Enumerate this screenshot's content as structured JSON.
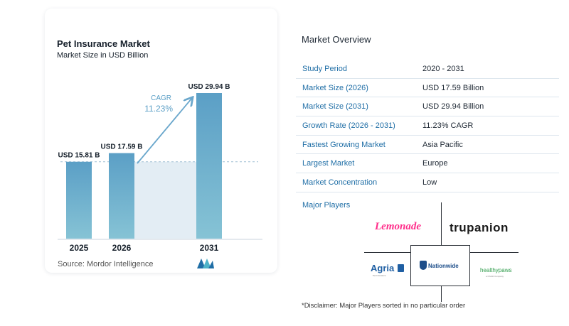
{
  "chart_data": {
    "type": "bar",
    "title": "Pet Insurance Market",
    "subtitle": "Market Size in USD Billion",
    "categories": [
      "2025",
      "2026",
      "2031"
    ],
    "values": [
      15.81,
      17.59,
      29.94
    ],
    "value_labels": [
      "USD 15.81 B",
      "USD 17.59 B",
      "USD 29.94 B"
    ],
    "cagr_label": "CAGR",
    "cagr_value": "11.23%",
    "ylim": [
      0,
      30
    ],
    "grid": false,
    "colors": {
      "bar_top": "#5b9fc6",
      "bar_bottom": "#86c3d5",
      "band": "#e3edf4",
      "arrow": "#6aa7cc",
      "cagr_text": "#5b9fc6"
    }
  },
  "source": "Source:  Mordor Intelligence",
  "overview": {
    "title": "Market Overview",
    "rows": [
      {
        "label": "Study Period",
        "value": "2020 - 2031"
      },
      {
        "label": "Market Size (2026)",
        "value": "USD 17.59 Billion"
      },
      {
        "label": "Market Size (2031)",
        "value": "USD 29.94 Billion"
      },
      {
        "label": "Growth Rate (2026 - 2031)",
        "value": "11.23% CAGR"
      },
      {
        "label": "Fastest Growing Market",
        "value": "Asia Pacific"
      },
      {
        "label": "Largest Market",
        "value": "Europe"
      },
      {
        "label": "Market Concentration",
        "value": "Low"
      }
    ]
  },
  "players": {
    "title": "Major Players",
    "logos": {
      "lemonade": "Lemonade",
      "trupanion": "trupanion",
      "agria": "Agria",
      "agria_sub": "Pet Insurance",
      "nationwide": "Nationwide",
      "healthypaws": "healthypaws",
      "healthypaws_sub": "a Chubb Company"
    }
  },
  "disclaimer": "*Disclaimer: Major Players sorted in no particular order"
}
